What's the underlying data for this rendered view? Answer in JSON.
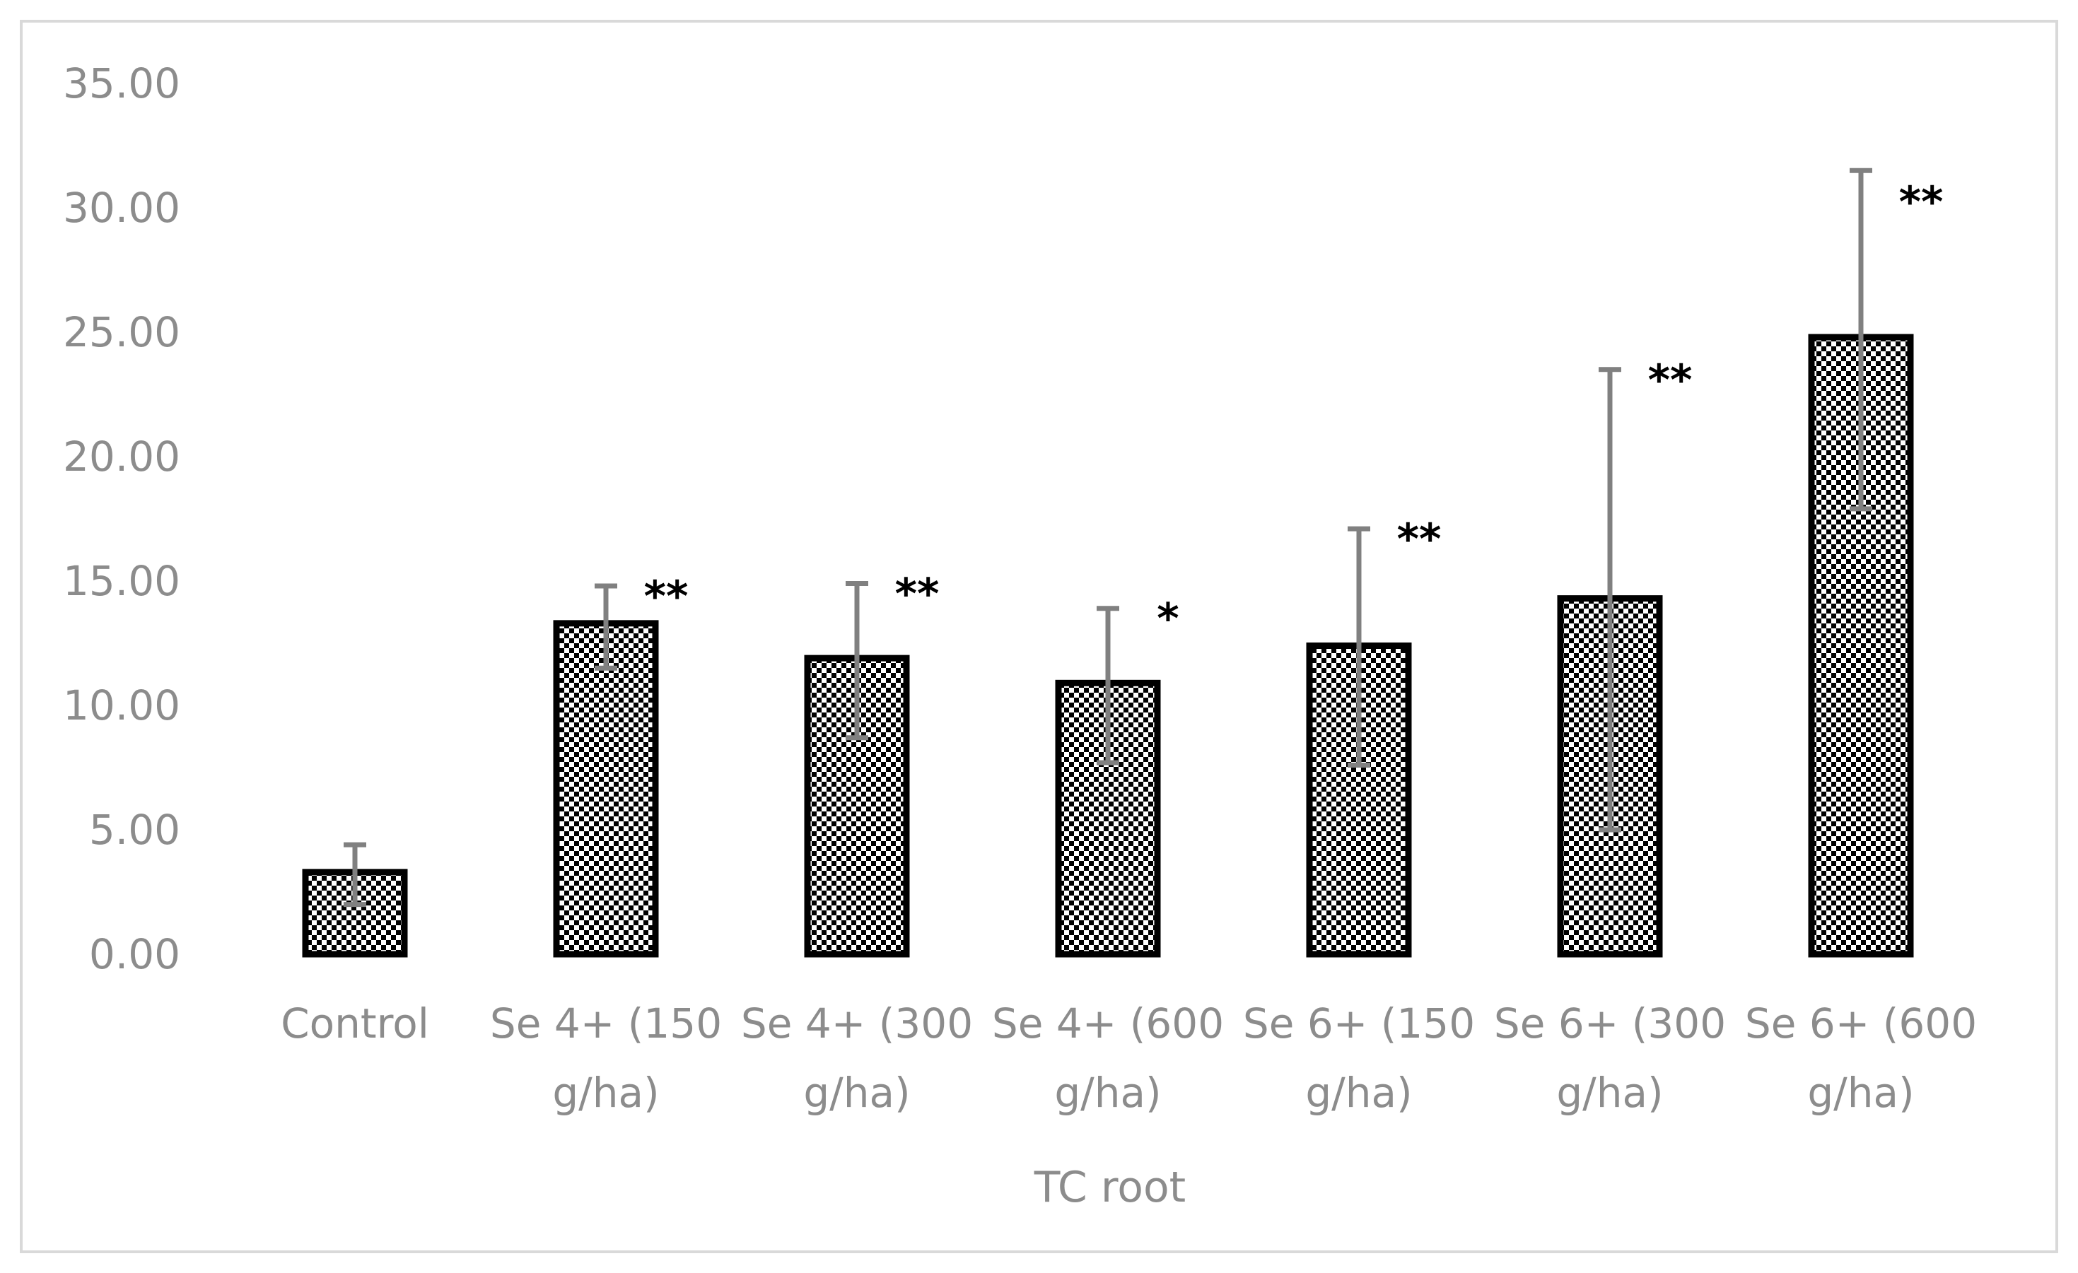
{
  "chart_data": {
    "type": "bar",
    "title": "",
    "xlabel": "TC root",
    "ylabel": "",
    "ylim": [
      0,
      35
    ],
    "yticks": [
      "0.00",
      "5.00",
      "10.00",
      "15.00",
      "20.00",
      "25.00",
      "30.00",
      "35.00"
    ],
    "grid": false,
    "categories": [
      [
        "Control"
      ],
      [
        "Se 4+ (150",
        "g/ha)"
      ],
      [
        "Se 4+ (300",
        "g/ha)"
      ],
      [
        "Se 4+  (600",
        "g/ha)"
      ],
      [
        "Se 6+ (150",
        "g/ha)"
      ],
      [
        "Se 6+ (300",
        "g/ha)"
      ],
      [
        "Se 6+  (600",
        "g/ha)"
      ]
    ],
    "values": [
      3.3,
      13.3,
      11.9,
      10.9,
      12.4,
      14.3,
      24.8
    ],
    "error_low": [
      2.0,
      11.5,
      8.7,
      7.7,
      7.6,
      5.0,
      17.9
    ],
    "error_high": [
      4.4,
      14.8,
      14.9,
      13.9,
      17.1,
      23.5,
      31.5
    ],
    "significance": [
      "",
      "**",
      "**",
      "*",
      "**",
      "**",
      "**"
    ],
    "colors": {
      "bar_fill": "#ffffff",
      "bar_pattern": "#000000",
      "bar_outline": "#000000",
      "error_bar": "#808080",
      "tick_text": "#8c8c8c",
      "frame": "#d9d9d9"
    }
  }
}
